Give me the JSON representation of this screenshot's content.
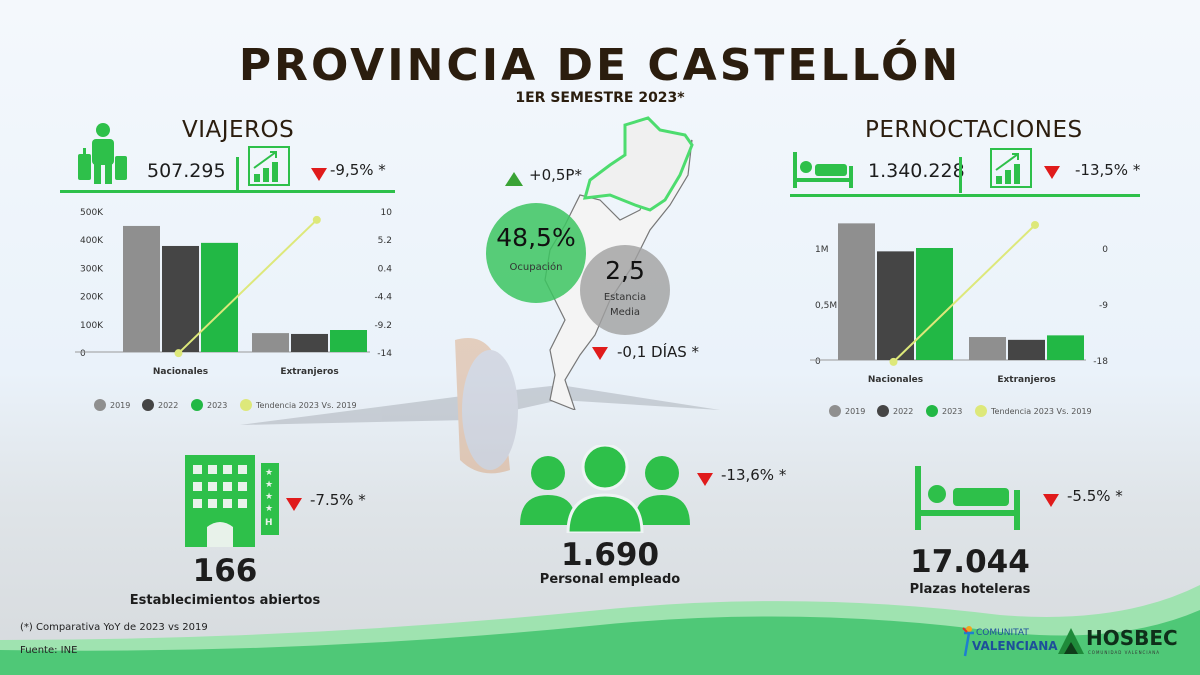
{
  "header": {
    "title": "PROVINCIA DE CASTELLÓN",
    "subtitle": "1ER SEMESTRE 2023*"
  },
  "colors": {
    "green": "#2ec04a",
    "accent_green": "#22b845",
    "dark": "#2b1d0e",
    "gray_2019": "#8f8f8f",
    "dark_2022": "#454545",
    "trend": "#dde87a",
    "down": "#e01b1b",
    "up": "#3aa335"
  },
  "viajeros": {
    "title": "VIAJEROS",
    "value": "507.295",
    "change": "-9,5% *",
    "trend": "down",
    "icons": [
      "traveler-luggage-icon",
      "growth-chart-icon"
    ]
  },
  "pernoctaciones": {
    "title": "PERNOCTACIONES",
    "value": "1.340.228",
    "change": "-13,5% *",
    "trend": "down",
    "icons": [
      "bed-icon",
      "growth-chart-icon"
    ]
  },
  "center": {
    "ocupacion_value": "48,5%",
    "ocupacion_label": "Ocupación",
    "ocupacion_change": "+0,5P*",
    "estancia_value": "2,5",
    "estancia_label_1": "Estancia",
    "estancia_label_2": "Media",
    "estancia_change": "-0,1 DÍAS *"
  },
  "bottom": {
    "establecimientos": {
      "value": "166",
      "label": "Establecimientos abiertos",
      "change": "-7.5% *"
    },
    "personal": {
      "value": "1.690",
      "label": "Personal empleado",
      "change": "-13,6% *"
    },
    "plazas": {
      "value": "17.044",
      "label": "Plazas hoteleras",
      "change": "-5.5% *"
    }
  },
  "footer": {
    "note": "(*) Comparativa YoY de 2023 vs 2019",
    "source": "Fuente: INE",
    "logo1_line1": "COMUNITAT",
    "logo1_line2": "VALENCIANA",
    "logo2": "HOSBEC",
    "logo2_sub": "COMUNIDAD VALENCIANA"
  },
  "chart_data": [
    {
      "type": "bar",
      "title": "",
      "categories": [
        "Nacionales",
        "Extranjeros"
      ],
      "series": [
        {
          "name": "2019",
          "values": [
            447000,
            67000
          ]
        },
        {
          "name": "2022",
          "values": [
            376000,
            64000
          ]
        },
        {
          "name": "2023",
          "values": [
            387000,
            78000
          ]
        }
      ],
      "line_series": {
        "name": "Tendencia 2023 Vs. 2019",
        "values": [
          -14.2,
          8.5
        ],
        "axis": "right"
      },
      "y_ticks": [
        "0",
        "100K",
        "200K",
        "300K",
        "400K",
        "500K"
      ],
      "ylim": [
        0,
        500000
      ],
      "y2_ticks": [
        "-14",
        "-9.2",
        "-4.4",
        "0.4",
        "5.2",
        "10"
      ],
      "y2lim": [
        -14,
        10
      ],
      "legend": [
        "2019",
        "2022",
        "2023",
        "Tendencia 2023 Vs. 2019"
      ],
      "legend_position": "bottom",
      "grid": false
    },
    {
      "type": "bar",
      "title": "",
      "categories": [
        "Nacionales",
        "Extranjeros"
      ],
      "series": [
        {
          "name": "2019",
          "values": [
            1220000,
            205000
          ]
        },
        {
          "name": "2022",
          "values": [
            970000,
            180000
          ]
        },
        {
          "name": "2023",
          "values": [
            1000000,
            220000
          ]
        }
      ],
      "line_series": {
        "name": "Tendencia 2023 Vs. 2019",
        "values": [
          -18.3,
          3.7
        ],
        "axis": "right"
      },
      "y_ticks": [
        "0",
        "0,5M",
        "1M"
      ],
      "y_tick_values": [
        0,
        500000,
        1000000
      ],
      "ylim": [
        0,
        1000000
      ],
      "y2_ticks": [
        "-18",
        "-9",
        "0"
      ],
      "y2_tick_values": [
        -18,
        -9,
        0
      ],
      "y2lim": [
        -18,
        0
      ],
      "legend": [
        "2019",
        "2022",
        "2023",
        "Tendencia 2023 Vs. 2019"
      ],
      "legend_position": "bottom",
      "grid": false
    }
  ]
}
